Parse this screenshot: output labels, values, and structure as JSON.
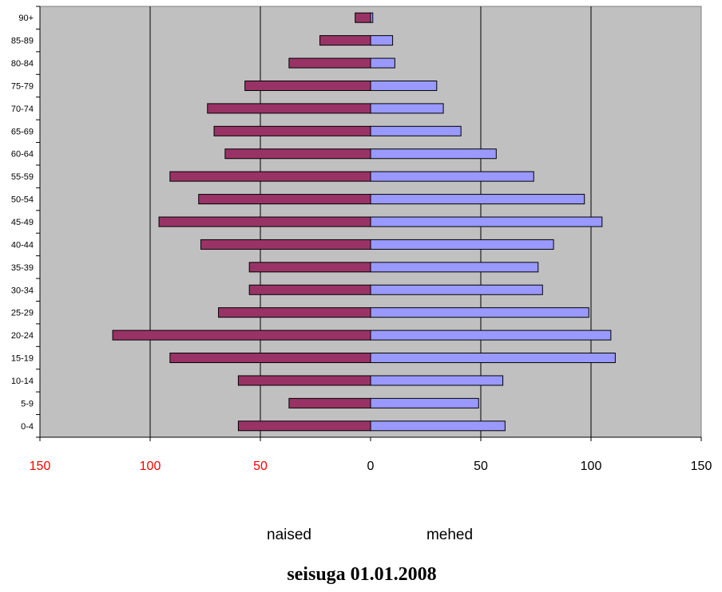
{
  "chart_data": {
    "type": "bar",
    "orientation": "horizontal",
    "chart_style": "population-pyramid",
    "categories": [
      "0-4",
      "5-9",
      "10-14",
      "15-19",
      "20-24",
      "25-29",
      "30-34",
      "35-39",
      "40-44",
      "45-49",
      "50-54",
      "55-59",
      "60-64",
      "65-69",
      "70-74",
      "75-79",
      "80-84",
      "85-89",
      "90+"
    ],
    "series": [
      {
        "name": "naised",
        "side": "left",
        "color": "#993366",
        "values": [
          60,
          37,
          60,
          91,
          117,
          69,
          55,
          55,
          77,
          96,
          78,
          91,
          66,
          71,
          74,
          57,
          37,
          23,
          7
        ]
      },
      {
        "name": "mehed",
        "side": "right",
        "color": "#9999ff",
        "values": [
          61,
          49,
          60,
          111,
          109,
          99,
          78,
          76,
          83,
          105,
          97,
          74,
          57,
          41,
          33,
          30,
          11,
          10,
          1
        ]
      }
    ],
    "xlim": [
      -150,
      150
    ],
    "x_ticks": [
      {
        "value": -150,
        "label": "150"
      },
      {
        "value": -100,
        "label": "100"
      },
      {
        "value": -50,
        "label": "50"
      },
      {
        "value": 0,
        "label": "0"
      },
      {
        "value": 50,
        "label": "50"
      },
      {
        "value": 100,
        "label": "100"
      },
      {
        "value": 150,
        "label": "150"
      }
    ],
    "gridlines": [
      -100,
      -50,
      50,
      100
    ],
    "grid": true,
    "plot_background": "#c0c0c0",
    "bar_edge_color": "#000000",
    "tick_colors": {
      "negative": "#ff0000",
      "positive": "#000000"
    },
    "legend": {
      "placement": "bottom",
      "style": "text-only",
      "entries": [
        "naised",
        "mehed"
      ]
    },
    "caption": "seisuga 01.01.2008"
  }
}
